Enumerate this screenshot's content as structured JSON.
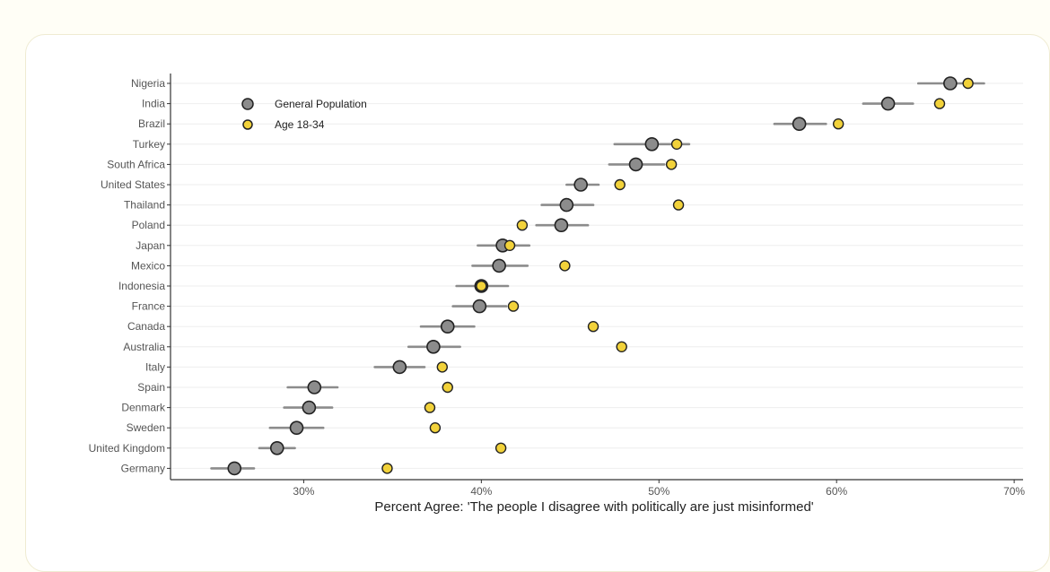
{
  "chart_data": {
    "type": "scatter",
    "xlabel": "Percent Agree: 'The people I disagree with politically are just misinformed'",
    "ylabel": "",
    "xlim": [
      22.5,
      70.5
    ],
    "x_ticks": [
      "30%",
      "40%",
      "50%",
      "60%",
      "70%"
    ],
    "x_tick_values": [
      30,
      40,
      50,
      60,
      70
    ],
    "legend_position": "top-left",
    "grid": "horizontal",
    "categories": [
      "Nigeria",
      "India",
      "Brazil",
      "Turkey",
      "South Africa",
      "United States",
      "Thailand",
      "Poland",
      "Japan",
      "Mexico",
      "Indonesia",
      "France",
      "Canada",
      "Australia",
      "Italy",
      "Spain",
      "Denmark",
      "Sweden",
      "United Kingdom",
      "Germany"
    ],
    "series": [
      {
        "name": "General Population",
        "color": "#8c8c8c",
        "values": [
          66.4,
          62.9,
          57.9,
          49.6,
          48.7,
          45.6,
          44.8,
          44.5,
          41.2,
          41.0,
          40.0,
          39.9,
          38.1,
          37.3,
          35.4,
          30.6,
          30.3,
          29.6,
          28.5,
          26.1
        ],
        "error_low": [
          64.6,
          61.5,
          56.5,
          47.5,
          47.2,
          44.8,
          43.4,
          43.1,
          39.8,
          39.5,
          38.6,
          38.4,
          36.6,
          35.9,
          34.0,
          29.1,
          28.9,
          28.1,
          27.5,
          24.8
        ],
        "error_high": [
          68.3,
          64.3,
          59.4,
          51.7,
          50.3,
          46.6,
          46.3,
          46.0,
          42.7,
          42.6,
          41.5,
          41.4,
          39.6,
          38.8,
          36.8,
          31.9,
          31.6,
          31.1,
          29.5,
          27.2
        ]
      },
      {
        "name": "Age 18-34",
        "color": "#f2d23a",
        "values": [
          67.4,
          65.8,
          60.1,
          51.0,
          50.7,
          47.8,
          51.1,
          42.3,
          41.6,
          44.7,
          40.0,
          41.8,
          46.3,
          47.9,
          37.8,
          38.1,
          37.1,
          37.4,
          41.1,
          34.7
        ]
      }
    ]
  }
}
